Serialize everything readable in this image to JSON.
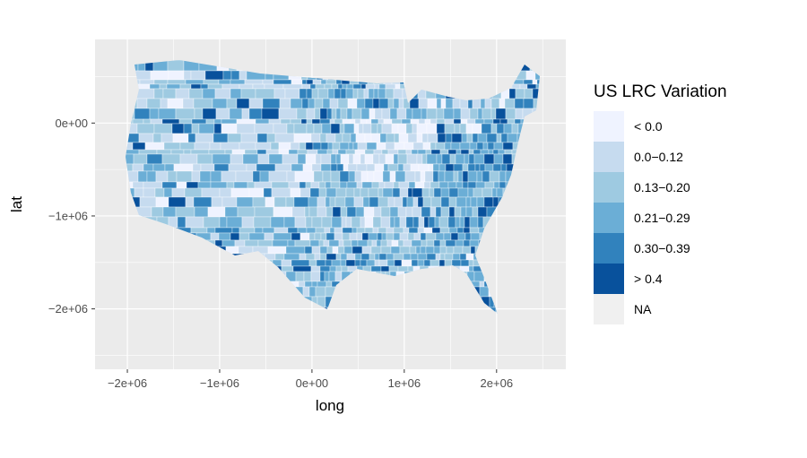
{
  "chart_data": {
    "type": "heatmap",
    "subtype": "choropleth-map",
    "title": "",
    "xlabel": "long",
    "ylabel": "lat",
    "x_ticks": [
      "−2e+06",
      "−1e+06",
      "0e+00",
      "1e+06",
      "2e+06"
    ],
    "y_ticks": [
      "0e+00",
      "−1e+06",
      "−2e+06"
    ],
    "x_tick_values": [
      -2000000,
      -1000000,
      0,
      1000000,
      2000000
    ],
    "y_tick_values": [
      0,
      -1000000,
      -2000000
    ],
    "xlim": [
      -2350000,
      2750000
    ],
    "ylim": [
      -2650000,
      900000
    ],
    "grid": true,
    "panel_background": "#ebebeb",
    "grid_color": "#ffffff",
    "legend": {
      "title": "US LRC Variation",
      "position": "right",
      "items": [
        {
          "label": "< 0.0",
          "color": "#eff3ff"
        },
        {
          "label": "0.0−0.12",
          "color": "#c6dbef"
        },
        {
          "label": "0.13−0.20",
          "color": "#9ecae1"
        },
        {
          "label": "0.21−0.29",
          "color": "#6baed6"
        },
        {
          "label": "0.30−0.39",
          "color": "#3182bd"
        },
        {
          "label": "> 0.4",
          "color": "#08519c"
        },
        {
          "label": "NA",
          "color": "#f0f0f0"
        }
      ]
    }
  }
}
